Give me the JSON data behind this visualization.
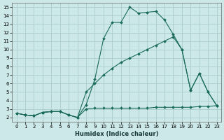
{
  "background_color": "#cce8e8",
  "grid_color": "#aacccc",
  "line_color": "#1a6b5a",
  "xlabel": "Humidex (Indice chaleur)",
  "xlim": [
    -0.5,
    23.5
  ],
  "ylim": [
    1.5,
    15.5
  ],
  "xticks": [
    0,
    1,
    2,
    3,
    4,
    5,
    6,
    7,
    8,
    9,
    10,
    11,
    12,
    13,
    14,
    15,
    16,
    17,
    18,
    19,
    20,
    21,
    22,
    23
  ],
  "yticks": [
    2,
    3,
    4,
    5,
    6,
    7,
    8,
    9,
    10,
    11,
    12,
    13,
    14,
    15
  ],
  "line1_x": [
    0,
    1,
    2,
    3,
    4,
    5,
    6,
    7,
    8,
    9,
    10,
    11,
    12,
    13,
    14,
    15,
    16,
    17,
    18,
    19,
    20,
    21,
    22,
    23
  ],
  "line1_y": [
    2.5,
    2.3,
    2.2,
    2.6,
    2.7,
    2.7,
    2.3,
    2.0,
    3.5,
    6.5,
    11.3,
    13.2,
    13.2,
    15.0,
    14.3,
    14.4,
    14.5,
    13.5,
    11.8,
    10.0,
    5.2,
    7.2,
    5.0,
    3.4
  ],
  "line2_x": [
    0,
    1,
    2,
    3,
    4,
    5,
    6,
    7,
    8,
    9,
    10,
    11,
    12,
    13,
    14,
    15,
    16,
    17,
    18,
    19,
    20,
    21,
    22,
    23
  ],
  "line2_y": [
    2.5,
    2.3,
    2.2,
    2.6,
    2.7,
    2.7,
    2.3,
    2.0,
    5.0,
    6.0,
    7.0,
    7.8,
    8.5,
    9.0,
    9.5,
    10.0,
    10.5,
    11.0,
    11.5,
    10.0,
    5.2,
    7.2,
    5.0,
    3.4
  ],
  "line3_x": [
    0,
    1,
    2,
    3,
    4,
    5,
    6,
    7,
    8,
    9,
    10,
    11,
    12,
    13,
    14,
    15,
    16,
    17,
    18,
    19,
    20,
    21,
    22,
    23
  ],
  "line3_y": [
    2.5,
    2.3,
    2.2,
    2.6,
    2.7,
    2.7,
    2.3,
    2.0,
    3.0,
    3.1,
    3.1,
    3.1,
    3.1,
    3.1,
    3.1,
    3.1,
    3.2,
    3.2,
    3.2,
    3.2,
    3.2,
    3.3,
    3.3,
    3.4
  ]
}
